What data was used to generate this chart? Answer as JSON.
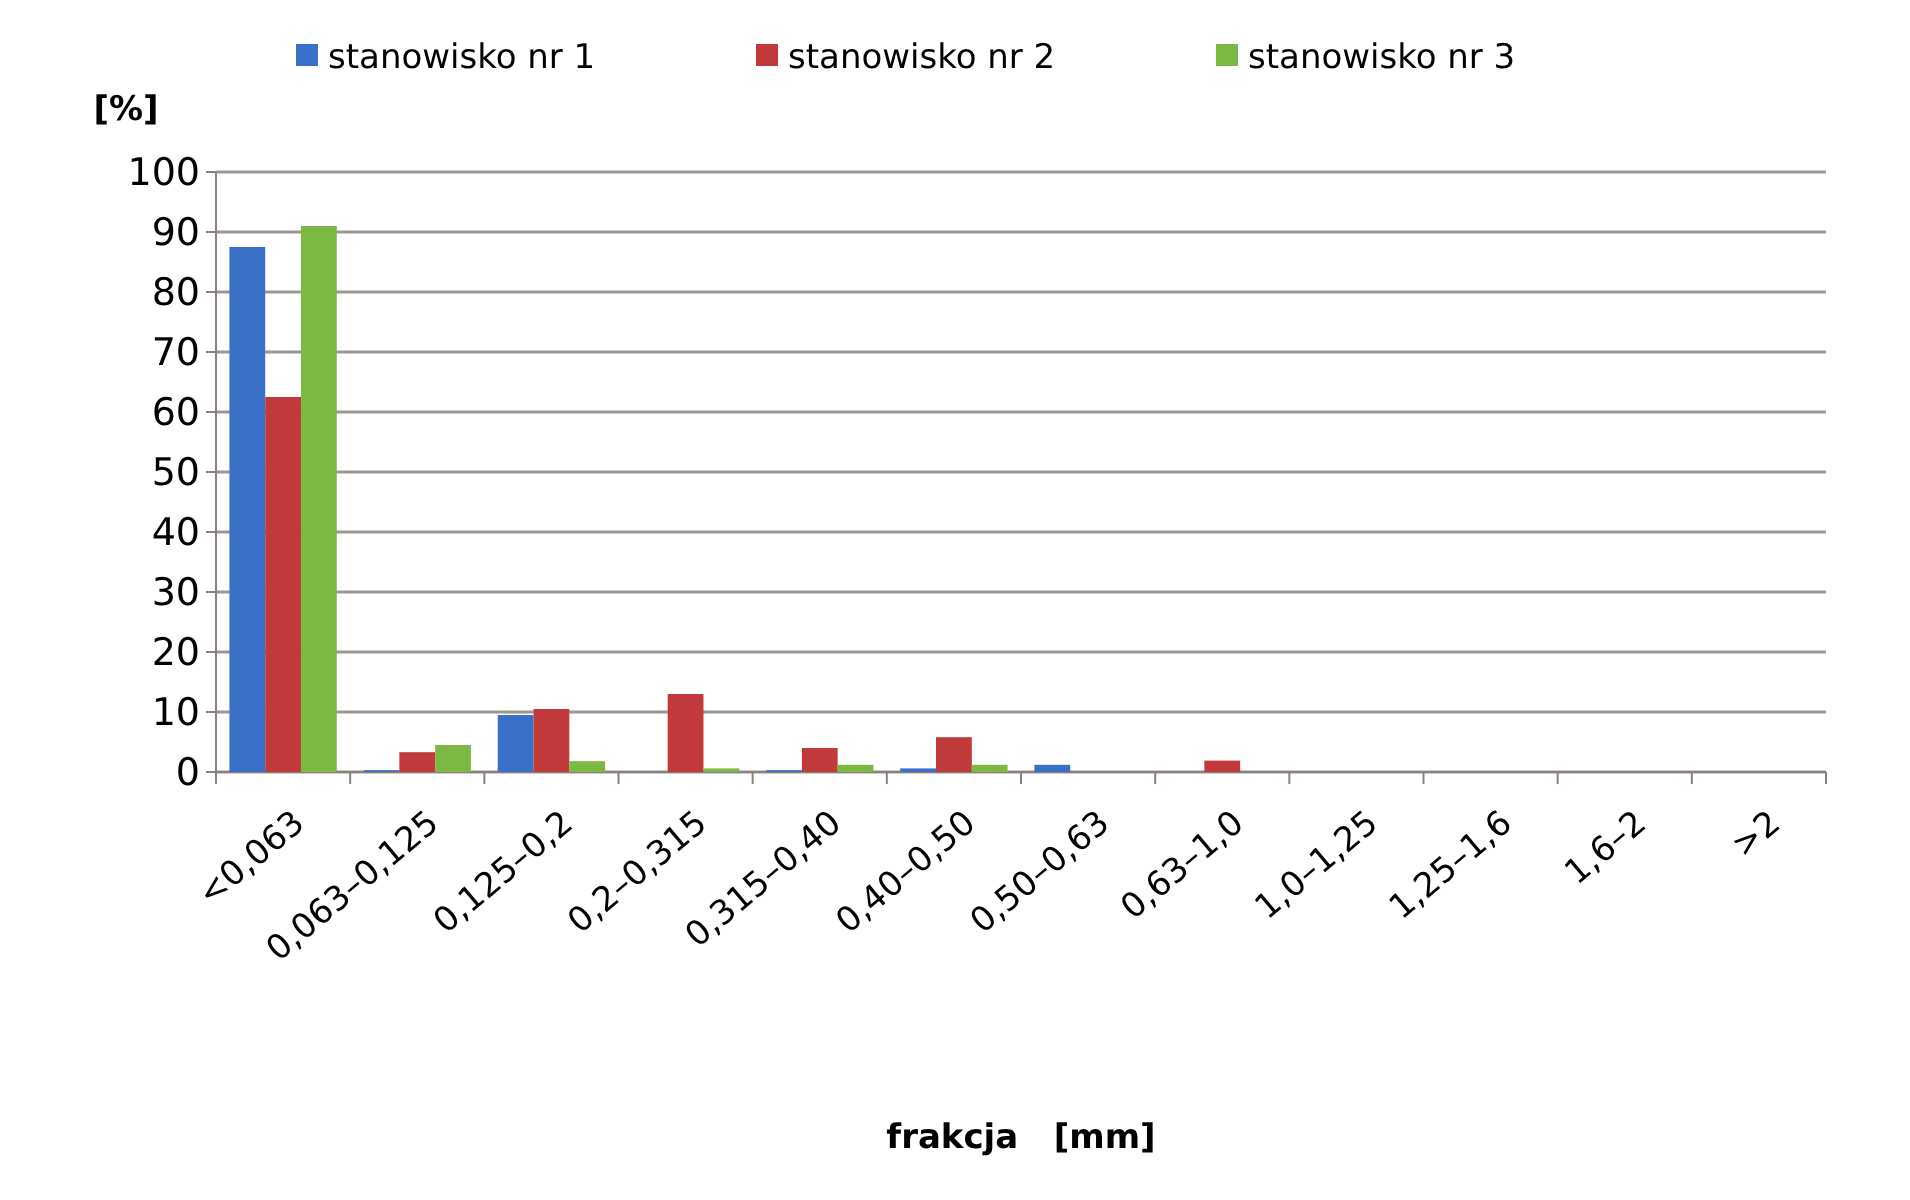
{
  "chart_data": {
    "type": "bar",
    "xlabel": "frakcja   [mm]",
    "ylabel": "[%]",
    "categories": [
      "<0,063",
      "0,063–0,125",
      "0,125–0,2",
      "0,2–0,315",
      "0,315–0,40",
      "0,40–0,50",
      "0,50–0,63",
      "0,63–1,0",
      "1,0–1,25",
      "1,25–1,6",
      "1,6–2",
      ">2"
    ],
    "series": [
      {
        "name": "stanowisko nr 1",
        "color": "#3a70c8",
        "values": [
          87.5,
          0.3,
          9.5,
          0,
          0.3,
          0.6,
          1.2,
          0,
          0,
          0,
          0,
          0
        ]
      },
      {
        "name": "stanowisko nr 2",
        "color": "#c0393b",
        "values": [
          62.5,
          3.3,
          10.5,
          13,
          4,
          5.8,
          0,
          1.9,
          0,
          0,
          0,
          0
        ]
      },
      {
        "name": "stanowisko nr 3",
        "color": "#7cb944",
        "values": [
          91,
          4.5,
          1.8,
          0.6,
          1.2,
          1.2,
          null,
          null,
          0,
          0,
          0,
          0
        ]
      }
    ],
    "ylim": [
      0,
      100
    ],
    "yticks": [
      0,
      10,
      20,
      30,
      40,
      50,
      60,
      70,
      80,
      90,
      100
    ],
    "grid": "y",
    "legend": "top"
  }
}
